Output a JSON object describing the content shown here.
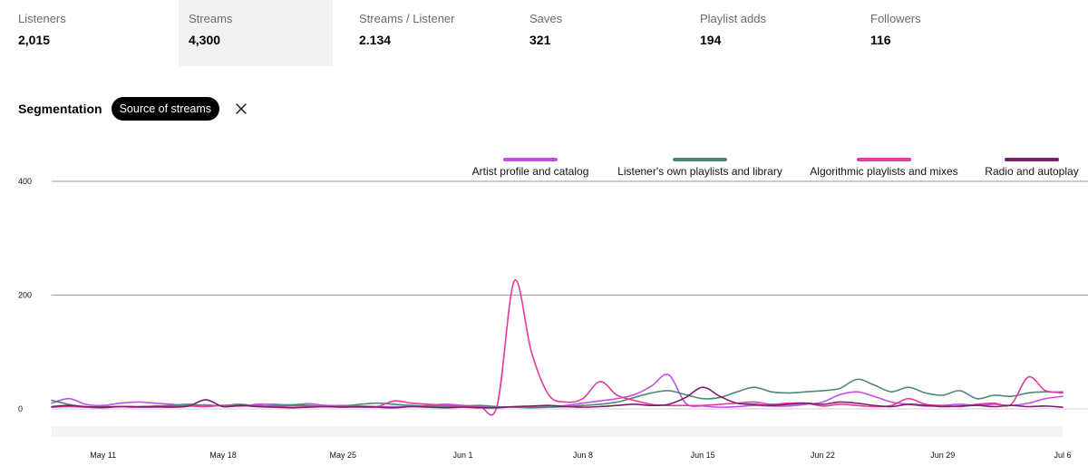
{
  "stats": [
    {
      "label": "Listeners",
      "value": "2,015",
      "active": false
    },
    {
      "label": "Streams",
      "value": "4,300",
      "active": true
    },
    {
      "label": "Streams / Listener",
      "value": "2.134",
      "active": false
    },
    {
      "label": "Saves",
      "value": "321",
      "active": false
    },
    {
      "label": "Playlist adds",
      "value": "194",
      "active": false
    },
    {
      "label": "Followers",
      "value": "116",
      "active": false
    }
  ],
  "segmentation": {
    "title": "Segmentation",
    "chip_label": "Source of streams",
    "close_icon": "close-icon"
  },
  "colors": {
    "active_tile_bg": "#f2f2f2",
    "chip_bg": "#000000"
  },
  "chart_data": {
    "type": "line",
    "ylim": [
      0,
      400
    ],
    "yticks": [
      0,
      200,
      400
    ],
    "x_tick_labels": [
      "May 11",
      "May 18",
      "May 25",
      "Jun 1",
      "Jun 8",
      "Jun 15",
      "Jun 22",
      "Jun 29",
      "Jul 6"
    ],
    "x_tick_days": [
      3,
      10,
      17,
      24,
      31,
      38,
      45,
      52,
      59
    ],
    "x_days_note_hidden": "",
    "grid": true,
    "legend_position": "top-right",
    "series": [
      {
        "name": "Artist profile and catalog",
        "color": "#c44fe8",
        "values": [
          10,
          18,
          8,
          6,
          10,
          12,
          10,
          8,
          6,
          7,
          5,
          5,
          8,
          8,
          7,
          9,
          6,
          6,
          5,
          4,
          4,
          4,
          6,
          8,
          6,
          4,
          3,
          4,
          3,
          4,
          6,
          10,
          14,
          18,
          25,
          40,
          60,
          10,
          5,
          3,
          4,
          6,
          5,
          5,
          8,
          12,
          25,
          30,
          22,
          12,
          8,
          5,
          6,
          8,
          6,
          8,
          6,
          10,
          18,
          22
        ]
      },
      {
        "name": "Listener's own playlists and library",
        "color": "#4e8a72",
        "values": [
          15,
          8,
          3,
          4,
          4,
          3,
          5,
          6,
          8,
          6,
          6,
          8,
          5,
          6,
          7,
          6,
          4,
          5,
          8,
          10,
          8,
          6,
          5,
          4,
          5,
          6,
          4,
          3,
          2,
          3,
          4,
          6,
          8,
          12,
          20,
          28,
          32,
          25,
          18,
          20,
          30,
          38,
          30,
          28,
          30,
          32,
          36,
          52,
          42,
          30,
          38,
          28,
          24,
          32,
          18,
          24,
          22,
          28,
          30,
          28
        ]
      },
      {
        "name": "Algorithmic playlists and mixes",
        "color": "#e43aa0",
        "values": [
          3,
          4,
          3,
          2,
          4,
          3,
          3,
          4,
          5,
          4,
          6,
          5,
          6,
          4,
          5,
          5,
          4,
          4,
          3,
          4,
          14,
          10,
          8,
          6,
          5,
          4,
          6,
          225,
          100,
          25,
          12,
          18,
          48,
          24,
          15,
          8,
          6,
          6,
          6,
          8,
          10,
          12,
          8,
          10,
          10,
          5,
          8,
          6,
          4,
          6,
          18,
          8,
          6,
          4,
          8,
          10,
          8,
          56,
          32,
          30
        ]
      },
      {
        "name": "Radio and autoplay",
        "color": "#7a1f6a",
        "values": [
          4,
          6,
          4,
          3,
          4,
          4,
          4,
          3,
          5,
          16,
          4,
          6,
          4,
          3,
          2,
          3,
          4,
          3,
          4,
          3,
          2,
          4,
          3,
          2,
          3,
          2,
          2,
          4,
          5,
          6,
          4,
          3,
          4,
          6,
          8,
          6,
          8,
          20,
          38,
          22,
          10,
          8,
          6,
          8,
          10,
          8,
          12,
          10,
          6,
          4,
          8,
          6,
          4,
          5,
          6,
          4,
          6,
          4,
          5,
          3
        ]
      }
    ]
  }
}
